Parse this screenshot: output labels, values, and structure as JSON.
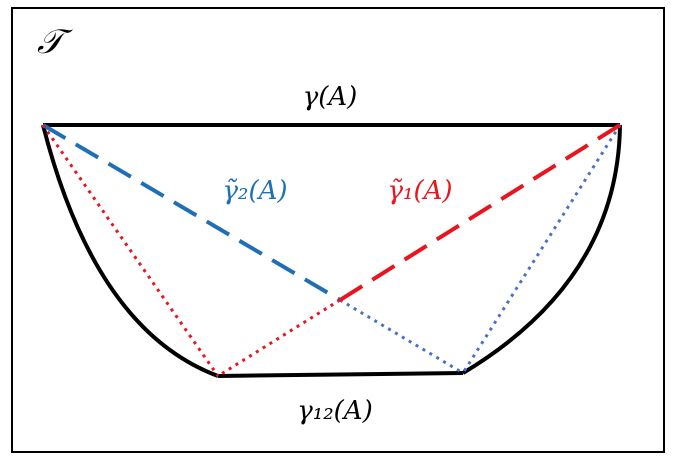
{
  "labels": {
    "region": "𝒯",
    "top": "γ(A)",
    "blue": "γ̃₂(A)",
    "red": "γ̃₁(A)",
    "bottom": "γ₁₂(A)"
  }
}
